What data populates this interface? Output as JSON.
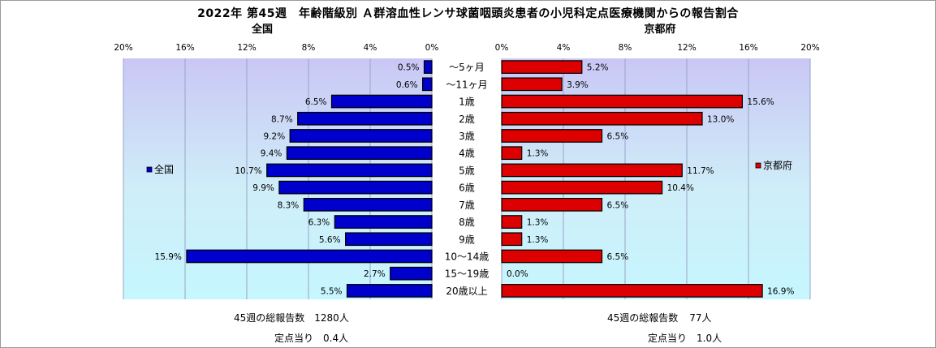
{
  "title": "2022年 第45週　年齢階級別 Ａ群溶血性レンサ球菌咽頭炎患者の小児科定点医療機関からの報告割合",
  "chart_data": {
    "type": "bar",
    "orientation": "horizontal",
    "categories": [
      "～5ヶ月",
      "～11ヶ月",
      "1歳",
      "2歳",
      "3歳",
      "4歳",
      "5歳",
      "6歳",
      "7歳",
      "8歳",
      "9歳",
      "10～14歳",
      "15～19歳",
      "20歳以上"
    ],
    "series": [
      {
        "name": "全国",
        "color": "#0000cc",
        "values": [
          0.5,
          0.6,
          6.5,
          8.7,
          9.2,
          9.4,
          10.7,
          9.9,
          8.3,
          6.3,
          5.6,
          15.9,
          2.7,
          5.5
        ],
        "value_labels": [
          "0.5%",
          "0.6%",
          "6.5%",
          "8.7%",
          "9.2%",
          "9.4%",
          "10.7%",
          "9.9%",
          "8.3%",
          "6.3%",
          "5.6%",
          "15.9%",
          "2.7%",
          "5.5%"
        ]
      },
      {
        "name": "京都府",
        "color": "#dd0000",
        "values": [
          5.2,
          3.9,
          15.6,
          13.0,
          6.5,
          1.3,
          11.7,
          10.4,
          6.5,
          1.3,
          1.3,
          6.5,
          0.0,
          16.9
        ],
        "value_labels": [
          "5.2%",
          "3.9%",
          "15.6%",
          "13.0%",
          "6.5%",
          "1.3%",
          "11.7%",
          "10.4%",
          "6.5%",
          "1.3%",
          "1.3%",
          "6.5%",
          "0.0%",
          "16.9%"
        ]
      }
    ],
    "panel_titles": [
      "全国",
      "京都府"
    ],
    "xlim": [
      0,
      20
    ],
    "left_ticks": [
      "20%",
      "16%",
      "12%",
      "8%",
      "4%",
      "0%"
    ],
    "right_ticks": [
      "0%",
      "4%",
      "8%",
      "12%",
      "16%",
      "20%"
    ],
    "grid": true
  },
  "stats": {
    "national": {
      "total_label": "45週の総報告数",
      "total_value": "1280人",
      "per_label": "定点当り",
      "per_value": "0.4人"
    },
    "kyoto": {
      "total_label": "45週の総報告数",
      "total_value": "77人",
      "per_label": "定点当り",
      "per_value": "1.0人"
    }
  }
}
